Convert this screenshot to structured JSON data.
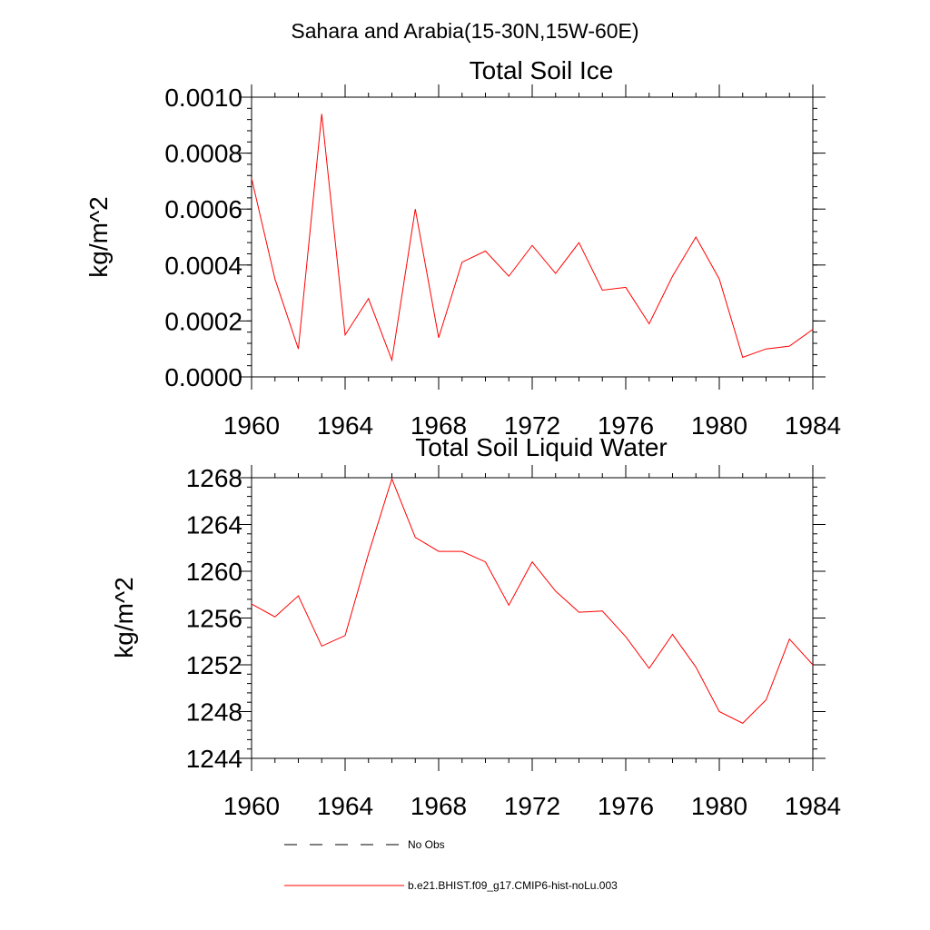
{
  "figure": {
    "suptitle": "Sahara and Arabia(15-30N,15W-60E)"
  },
  "chart_data": [
    {
      "type": "line",
      "title": "Total Soil Ice",
      "xlabel": "",
      "ylabel": "kg/m^2",
      "xlim": [
        1960,
        1984
      ],
      "ylim": [
        0,
        0.001
      ],
      "xticks": [
        1960,
        1964,
        1968,
        1972,
        1976,
        1980,
        1984
      ],
      "yticks": [
        0,
        0.0002,
        0.0004,
        0.0006,
        0.0008,
        0.001
      ],
      "ytick_labels": [
        "0.0000",
        "0.0002",
        "0.0004",
        "0.0006",
        "0.0008",
        "0.0010"
      ],
      "grid": false,
      "x": [
        1960,
        1961,
        1962,
        1963,
        1964,
        1965,
        1966,
        1967,
        1968,
        1969,
        1970,
        1971,
        1972,
        1973,
        1974,
        1975,
        1976,
        1977,
        1978,
        1979,
        1980,
        1981,
        1982,
        1983,
        1984
      ],
      "series": [
        {
          "name": "b.e21.BHIST.f09_g17.CMIP6-hist-noLu.003",
          "color": "#ff0000",
          "values": [
            0.00071,
            0.00035,
            0.0001,
            0.00094,
            0.00015,
            0.00028,
            6e-05,
            0.0006,
            0.00014,
            0.00041,
            0.00045,
            0.00036,
            0.00047,
            0.00037,
            0.00048,
            0.00031,
            0.00032,
            0.00019,
            0.00036,
            0.0005,
            0.00035,
            7e-05,
            0.0001,
            0.00011,
            0.00017
          ]
        }
      ]
    },
    {
      "type": "line",
      "title": "Total Soil Liquid Water",
      "xlabel": "",
      "ylabel": "kg/m^2",
      "xlim": [
        1960,
        1984
      ],
      "ylim": [
        1244,
        1268
      ],
      "xticks": [
        1960,
        1964,
        1968,
        1972,
        1976,
        1980,
        1984
      ],
      "yticks": [
        1244,
        1248,
        1252,
        1256,
        1260,
        1264,
        1268
      ],
      "ytick_labels": [
        "1244",
        "1248",
        "1252",
        "1256",
        "1260",
        "1264",
        "1268"
      ],
      "grid": false,
      "x": [
        1960,
        1961,
        1962,
        1963,
        1964,
        1965,
        1966,
        1967,
        1968,
        1969,
        1970,
        1971,
        1972,
        1973,
        1974,
        1975,
        1976,
        1977,
        1978,
        1979,
        1980,
        1981,
        1982,
        1983,
        1984
      ],
      "series": [
        {
          "name": "b.e21.BHIST.f09_g17.CMIP6-hist-noLu.003",
          "color": "#ff0000",
          "values": [
            1257.2,
            1256.1,
            1257.9,
            1253.6,
            1254.5,
            1261.5,
            1267.9,
            1262.9,
            1261.7,
            1261.7,
            1260.8,
            1257.1,
            1260.8,
            1258.3,
            1256.5,
            1256.6,
            1254.4,
            1251.7,
            1254.6,
            1251.8,
            1248.0,
            1247.0,
            1249.0,
            1254.2,
            1252.0
          ]
        }
      ]
    }
  ],
  "legend": {
    "placement": "bottom",
    "items": [
      {
        "label": "No Obs",
        "style": "dashed",
        "color": "#000000"
      },
      {
        "label": "b.e21.BHIST.f09_g17.CMIP6-hist-noLu.003",
        "style": "solid",
        "color": "#ff0000"
      }
    ]
  }
}
